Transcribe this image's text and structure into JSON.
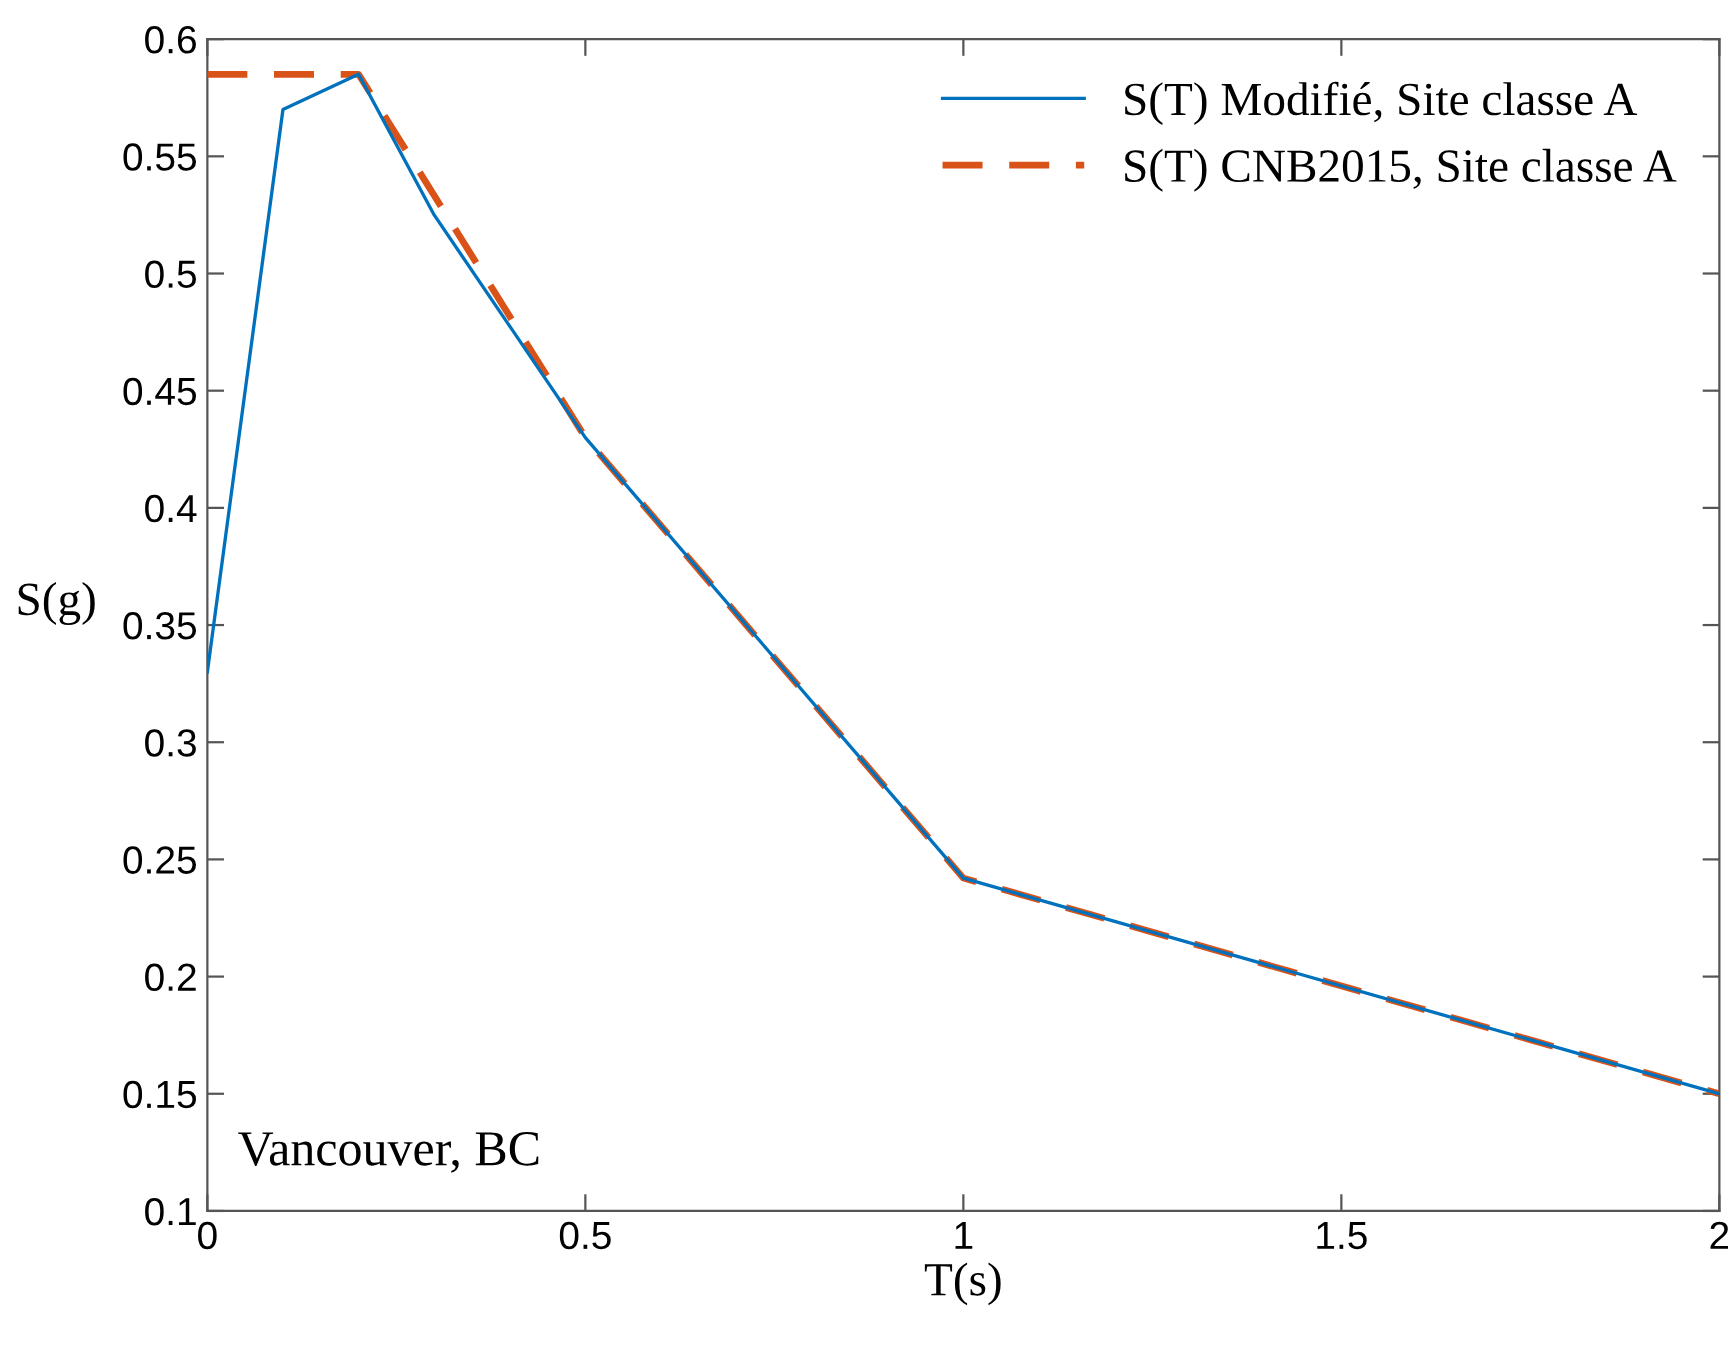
{
  "chart_data": {
    "type": "line",
    "xlabel": "T(s)",
    "ylabel": "S(g)",
    "annotations": [
      "Vancouver, BC"
    ],
    "xlim": [
      0,
      2
    ],
    "xticks": [
      0,
      0.5,
      1,
      1.5,
      2
    ],
    "ylim": [
      0.1,
      0.6
    ],
    "yticks": [
      0.1,
      0.15,
      0.2,
      0.25,
      0.3,
      0.35,
      0.4,
      0.45,
      0.5,
      0.55,
      0.6
    ],
    "grid": false,
    "legend": "top right",
    "marker": "none",
    "series": [
      {
        "name": "S(T) Modifié, Site classe A",
        "color": "#0072bd",
        "line_style": "solid",
        "x": [
          0,
          0.1,
          0.2,
          0.3,
          0.5,
          1,
          2
        ],
        "values": [
          0.33,
          0.57,
          0.585,
          0.525,
          0.43,
          0.242,
          0.15
        ]
      },
      {
        "name": "S(T) CNB2015, Site classe A",
        "color": "#d95319",
        "line_style": "dashed",
        "x": [
          0,
          0.2,
          0.5,
          1,
          2
        ],
        "values": [
          0.585,
          0.585,
          0.43,
          0.242,
          0.15
        ]
      }
    ]
  }
}
